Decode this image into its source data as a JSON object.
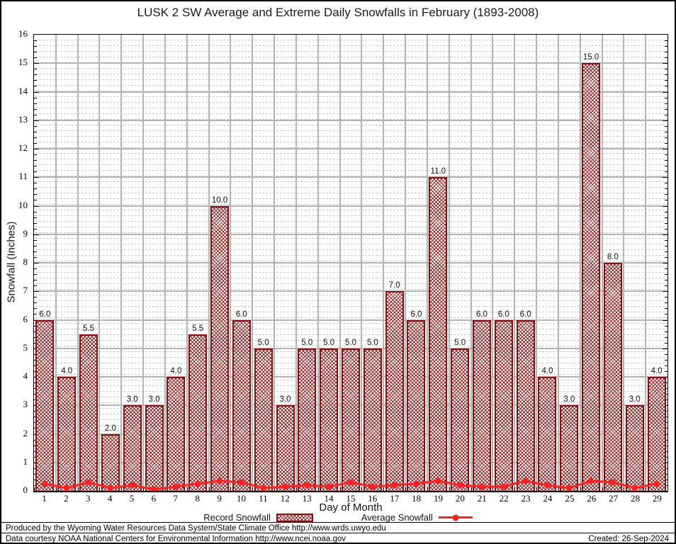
{
  "chart_data": {
    "type": "bar",
    "title": "LUSK 2 SW Average and Extreme Daily Snowfalls in February (1893-2008)",
    "xlabel": "Day of Month",
    "ylabel": "Snowfall (Inches)",
    "ylim": [
      0,
      16
    ],
    "y_tick_step": 1,
    "grid": "major-solid-gray, minor-dotted-gray",
    "legend_position": "bottom",
    "categories": [
      1,
      2,
      3,
      4,
      5,
      6,
      7,
      8,
      9,
      10,
      11,
      12,
      13,
      14,
      15,
      16,
      17,
      18,
      19,
      20,
      21,
      22,
      23,
      24,
      25,
      26,
      27,
      28,
      29
    ],
    "series": [
      {
        "name": "Record Snowfall",
        "type": "bar",
        "color": "#8b0f0f",
        "values": [
          6.0,
          4.0,
          5.5,
          2.0,
          3.0,
          3.0,
          4.0,
          5.5,
          10.0,
          6.0,
          5.0,
          3.0,
          5.0,
          5.0,
          5.0,
          5.0,
          7.0,
          6.0,
          11.0,
          5.0,
          6.0,
          6.0,
          6.0,
          4.0,
          3.0,
          15.0,
          8.0,
          3.0,
          4.0
        ],
        "labels": [
          "6.0",
          "4.0",
          "5.5",
          "2.0",
          "3.0",
          "3.0",
          "4.0",
          "5.5",
          "10.0",
          "6.0",
          "5.0",
          "3.0",
          "5.0",
          "5.0",
          "5.0",
          "5.0",
          "7.0",
          "6.0",
          "11.0",
          "5.0",
          "6.0",
          "6.0",
          "6.0",
          "4.0",
          "3.0",
          "15.0",
          "8.0",
          "3.0",
          "4.0"
        ]
      },
      {
        "name": "Average Snowfall",
        "type": "line",
        "color": "#ff2222",
        "values": [
          0.25,
          0.1,
          0.3,
          0.1,
          0.2,
          0.05,
          0.15,
          0.25,
          0.35,
          0.3,
          0.1,
          0.15,
          0.2,
          0.15,
          0.3,
          0.15,
          0.2,
          0.25,
          0.35,
          0.2,
          0.15,
          0.15,
          0.35,
          0.2,
          0.1,
          0.35,
          0.3,
          0.1,
          0.25
        ]
      }
    ]
  },
  "legend": {
    "items": [
      {
        "label": "Record Snowfall",
        "swatch": "hatched-bar-swatch"
      },
      {
        "label": "Average Snowfall",
        "swatch": "red-line-marker"
      }
    ]
  },
  "footer": {
    "line1": "Produced by the Wyoming Water Resources Data System/State Climate Office http://www.wrds.uwyo.edu",
    "line2": "Data courtesy NOAA National Centers for Environmental Information http://www.ncei.noaa.gov",
    "created": "Created: 26-Sep-2024"
  }
}
